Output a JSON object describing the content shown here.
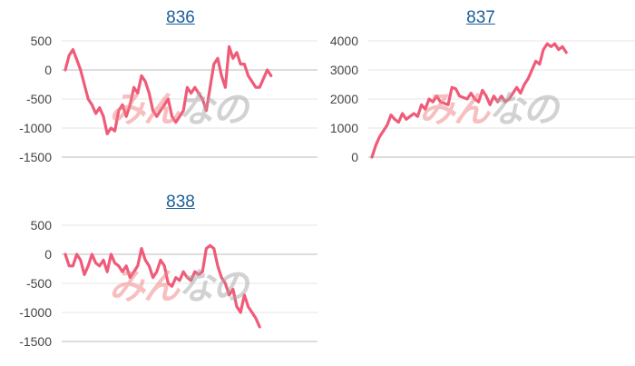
{
  "colors": {
    "series": "#ef5b78",
    "title": "#1a5e9a"
  },
  "watermark": {
    "part1": "みん",
    "part2": "なの"
  },
  "chart_data": [
    {
      "type": "line",
      "title": "836",
      "ylim": [
        -1500,
        500
      ],
      "yticks": [
        -1500,
        -1000,
        -500,
        0,
        500
      ],
      "ytick_labels": [
        "-1500",
        "-1000",
        "-500",
        "0",
        "500"
      ],
      "grid": true,
      "series": [
        {
          "values": [
            0,
            250,
            350,
            180,
            0,
            -250,
            -500,
            -600,
            -750,
            -650,
            -800,
            -1100,
            -1000,
            -1050,
            -700,
            -600,
            -800,
            -600,
            -300,
            -400,
            -100,
            -200,
            -400,
            -700,
            -800,
            -700,
            -600,
            -500,
            -800,
            -900,
            -800,
            -700,
            -300,
            -400,
            -300,
            -400,
            -500,
            -700,
            -300,
            100,
            200,
            -100,
            -300,
            400,
            200,
            300,
            100,
            100,
            -100,
            -200,
            -300,
            -300,
            -150,
            0,
            -100
          ]
        }
      ]
    },
    {
      "type": "line",
      "title": "837",
      "ylim": [
        0,
        4000
      ],
      "yticks": [
        0,
        1000,
        2000,
        3000,
        4000
      ],
      "ytick_labels": [
        "0",
        "1000",
        "2000",
        "3000",
        "4000"
      ],
      "grid": true,
      "series": [
        {
          "values": [
            0,
            400,
            700,
            900,
            1100,
            1450,
            1300,
            1200,
            1500,
            1300,
            1400,
            1500,
            1400,
            1800,
            1650,
            2000,
            1900,
            2100,
            1900,
            1850,
            1800,
            2400,
            2350,
            2100,
            2050,
            2000,
            2200,
            2000,
            1900,
            2300,
            2100,
            1800,
            2100,
            1900,
            2100,
            1900,
            2000,
            2200,
            2400,
            2200,
            2500,
            2700,
            3000,
            3300,
            3200,
            3700,
            3900,
            3800,
            3900,
            3700,
            3800,
            3600
          ]
        }
      ]
    },
    {
      "type": "line",
      "title": "838",
      "ylim": [
        -1500,
        500
      ],
      "yticks": [
        -1500,
        -1000,
        -500,
        0,
        500
      ],
      "ytick_labels": [
        "-1500",
        "-1000",
        "-500",
        "0",
        "500"
      ],
      "grid": true,
      "series": [
        {
          "values": [
            0,
            -200,
            -200,
            0,
            -100,
            -350,
            -200,
            0,
            -150,
            -200,
            -100,
            -300,
            0,
            -150,
            -200,
            -300,
            -200,
            -400,
            -300,
            -200,
            100,
            -100,
            -200,
            -400,
            -300,
            -100,
            -200,
            -500,
            -550,
            -400,
            -450,
            -300,
            -400,
            -450,
            -300,
            -350,
            -300,
            100,
            150,
            100,
            -200,
            -400,
            -500,
            -700,
            -600,
            -900,
            -1000,
            -700,
            -900,
            -1000,
            -1100,
            -1250
          ]
        }
      ]
    }
  ]
}
